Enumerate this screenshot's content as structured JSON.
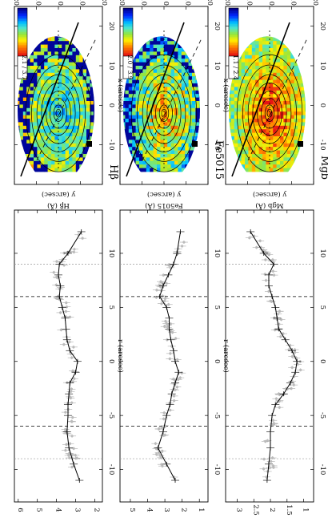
{
  "columns": [
    {
      "id": "hbeta",
      "title": "Hβ",
      "colorbar_label": "2.1 / 3.7",
      "map": {
        "xlabel": "x (arcsec)",
        "ylabel": "y (arcsec)",
        "xticks": [
          -10,
          0,
          10,
          20
        ],
        "yticks": [
          20,
          10,
          0,
          -10,
          -20
        ]
      },
      "profile": {
        "ylabel": "Hβ (Å)",
        "xlabel": "r (arcsec)",
        "ylim": [
          1.6,
          6.2
        ],
        "yticks": [
          2,
          3,
          4,
          5,
          6
        ]
      }
    },
    {
      "id": "fe5015",
      "title": "Fe5015",
      "colorbar_label": "2.0 / 3.9",
      "map": {
        "xlabel": "x (arcsec)",
        "ylabel": "y (arcsec)",
        "xticks": [
          -10,
          0,
          10,
          20
        ],
        "yticks": [
          20,
          10,
          0,
          -10,
          -20
        ]
      },
      "profile": {
        "ylabel": "Fe5015 (Å)",
        "xlabel": "r (arcsec)",
        "ylim": [
          0.5,
          5.6
        ],
        "yticks": [
          1,
          2,
          3,
          4,
          5
        ]
      }
    },
    {
      "id": "mgb",
      "title": "Mgb",
      "colorbar_label": "1.1 / 2.4",
      "map": {
        "xlabel": "x (arcsec)",
        "ylabel": "y (arcsec)",
        "xticks": [
          -10,
          0,
          10,
          20
        ],
        "yticks": [
          20,
          10,
          0,
          -10,
          -20
        ]
      },
      "profile": {
        "ylabel": "Mgb (Å)",
        "xlabel": "r (arcsec)",
        "ylim": [
          0.7,
          3.35
        ],
        "yticks": [
          1.0,
          1.5,
          2.0,
          2.5,
          3.0
        ]
      }
    }
  ],
  "chart_data": [
    {
      "type": "line",
      "title": "Hβ",
      "xlabel": "r (arcsec)",
      "ylabel": "Hβ (Å)",
      "xlim": [
        -13,
        14
      ],
      "ylim": [
        1.6,
        6.2
      ],
      "vlines_dashed": [
        -6,
        6
      ],
      "vlines_dotted": [
        -9,
        9
      ],
      "x": [
        -11,
        -9.5,
        -8,
        -6.5,
        -5,
        -4,
        -3,
        -2,
        -1,
        0,
        1,
        2,
        3,
        4,
        5,
        6,
        7,
        8,
        9,
        10,
        12
      ],
      "values": [
        2.8,
        3.1,
        3.35,
        3.45,
        3.4,
        3.4,
        3.35,
        3.3,
        3.0,
        2.9,
        3.3,
        3.45,
        3.5,
        3.55,
        3.7,
        3.85,
        3.8,
        3.9,
        3.85,
        3.4,
        2.7
      ]
    },
    {
      "type": "line",
      "title": "Fe5015",
      "xlabel": "r (arcsec)",
      "ylabel": "Fe5015 (Å)",
      "xlim": [
        -13,
        14
      ],
      "ylim": [
        0.5,
        5.6
      ],
      "vlines_dashed": [
        -6,
        6
      ],
      "vlines_dotted": [
        -9,
        9
      ],
      "x": [
        -11,
        -9.5,
        -8,
        -6.5,
        -5,
        -4,
        -3,
        -2,
        -1,
        0,
        1,
        2,
        3,
        4,
        5,
        6,
        7,
        8,
        9,
        10,
        12
      ],
      "values": [
        2.4,
        2.9,
        3.4,
        3.1,
        2.9,
        2.7,
        2.6,
        2.4,
        2.2,
        2.4,
        2.5,
        2.65,
        2.75,
        2.75,
        2.9,
        3.3,
        3.1,
        2.8,
        2.5,
        2.3,
        2.1
      ]
    },
    {
      "type": "line",
      "title": "Mgb",
      "xlabel": "r (arcsec)",
      "ylabel": "Mgb (Å)",
      "xlim": [
        -13,
        14
      ],
      "ylim": [
        0.7,
        3.35
      ],
      "vlines_dashed": [
        -6,
        6
      ],
      "vlines_dotted": [
        -9,
        9
      ],
      "x": [
        -11,
        -9.5,
        -8,
        -6.5,
        -5,
        -4,
        -3,
        -2,
        -1,
        0,
        1,
        2,
        3,
        4,
        5,
        6,
        7,
        8,
        9,
        10,
        12
      ],
      "values": [
        2.1,
        2.05,
        2.0,
        2.0,
        1.95,
        1.85,
        1.6,
        1.4,
        1.25,
        1.2,
        1.35,
        1.55,
        1.75,
        1.8,
        1.85,
        1.95,
        2.05,
        2.05,
        1.9,
        2.2,
        2.6
      ]
    }
  ]
}
